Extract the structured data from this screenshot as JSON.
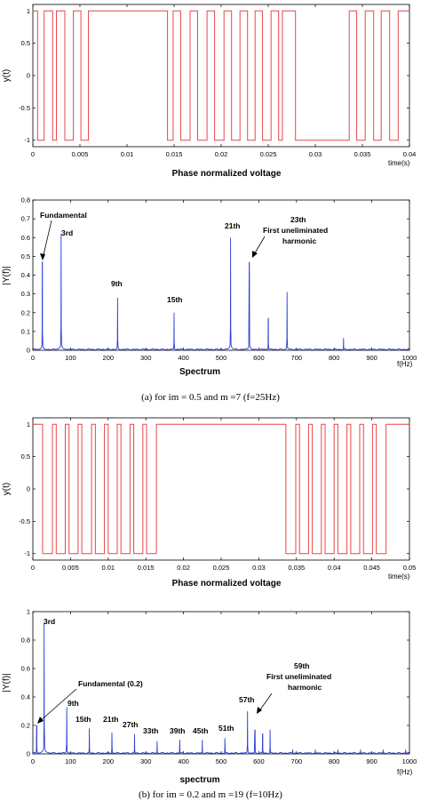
{
  "chart_data": [
    {
      "type": "line",
      "ylabel": "y(t)",
      "xlabel": "Phase normalized voltage",
      "xunit": "time(s)",
      "xlim": [
        0,
        0.04
      ],
      "ylim": [
        -1.1,
        1.1
      ],
      "xticks": [
        "0",
        "0.005",
        "0.01",
        "0.015",
        "0.02",
        "0.025",
        "0.03",
        "0.035",
        "0.04"
      ],
      "yticks": [
        "-1",
        "-0.5",
        "0",
        "0.5",
        "1"
      ],
      "color": "#e8474a",
      "pulses": [
        [
          0.0005,
          0.0012
        ],
        [
          0.0021,
          0.0025
        ],
        [
          0.0034,
          0.0043
        ],
        [
          0.0051,
          0.0059
        ],
        [
          0.0143,
          0.0149
        ],
        [
          0.0157,
          0.0167
        ],
        [
          0.0175,
          0.0185
        ],
        [
          0.0193,
          0.0203
        ],
        [
          0.0211,
          0.022
        ],
        [
          0.0228,
          0.0236
        ],
        [
          0.0244,
          0.0253
        ],
        [
          0.0261,
          0.0265
        ],
        [
          0.0279,
          0.0336
        ],
        [
          0.0344,
          0.0353
        ],
        [
          0.0362,
          0.037
        ],
        [
          0.0379,
          0.0388
        ]
      ]
    },
    {
      "type": "line",
      "ylabel": "|Y(f)|",
      "xlabel": "Spectrum",
      "xunit": "f(Hz)",
      "xlim": [
        0,
        1000
      ],
      "ylim": [
        0,
        0.8
      ],
      "xticks": [
        "0",
        "100",
        "200",
        "300",
        "400",
        "500",
        "600",
        "700",
        "800",
        "900",
        "1000"
      ],
      "yticks": [
        "0",
        "0.1",
        "0.2",
        "0.3",
        "0.4",
        "0.5",
        "0.6",
        "0.7",
        "0.8"
      ],
      "color": "#2b3fd6",
      "peaks": [
        {
          "f": 25,
          "a": 0.47
        },
        {
          "f": 75,
          "a": 0.62
        },
        {
          "f": 225,
          "a": 0.28
        },
        {
          "f": 375,
          "a": 0.2
        },
        {
          "f": 525,
          "a": 0.6
        },
        {
          "f": 575,
          "a": 0.47
        },
        {
          "f": 625,
          "a": 0.17
        },
        {
          "f": 675,
          "a": 0.31
        },
        {
          "f": 825,
          "a": 0.065
        }
      ],
      "annotations": [
        "Fundamental",
        "3rd",
        "9th",
        "15th",
        "21th",
        "23th",
        "First uneliminated",
        "harmonic"
      ]
    },
    {
      "type": "line",
      "ylabel": "y(t)",
      "xlabel": "Phase normalized voltage",
      "xunit": "time(s)",
      "xlim": [
        0,
        0.05
      ],
      "ylim": [
        -1.1,
        1.1
      ],
      "xticks": [
        "0",
        "0.005",
        "0.01",
        "0.015",
        "0.02",
        "0.025",
        "0.03",
        "0.035",
        "0.04",
        "0.045",
        "0.05"
      ],
      "yticks": [
        "-1",
        "-0.5",
        "0",
        "0.5",
        "1"
      ],
      "color": "#e8474a",
      "pulses": [
        [
          0.0013,
          0.0026
        ],
        [
          0.0031,
          0.0043
        ],
        [
          0.0048,
          0.006
        ],
        [
          0.0065,
          0.0078
        ],
        [
          0.0083,
          0.0095
        ],
        [
          0.01,
          0.0112
        ],
        [
          0.0117,
          0.0129
        ],
        [
          0.0134,
          0.0146
        ],
        [
          0.0151,
          0.0164
        ],
        [
          0.0336,
          0.0349
        ],
        [
          0.0354,
          0.0366
        ],
        [
          0.0371,
          0.0383
        ],
        [
          0.0388,
          0.04
        ],
        [
          0.0405,
          0.0417
        ],
        [
          0.0422,
          0.0434
        ],
        [
          0.0439,
          0.0451
        ],
        [
          0.0456,
          0.0469
        ]
      ]
    },
    {
      "type": "line",
      "ylabel": "|Y(f)|",
      "xlabel": "spectrum",
      "xunit": "f(Hz)",
      "xlim": [
        0,
        1000
      ],
      "ylim": [
        0,
        1
      ],
      "xticks": [
        "0",
        "100",
        "200",
        "300",
        "400",
        "500",
        "600",
        "700",
        "800",
        "900",
        "1000"
      ],
      "yticks": [
        "0",
        "0.2",
        "0.4",
        "0.6",
        "0.8",
        "1"
      ],
      "color": "#2b3fd6",
      "peaks": [
        {
          "f": 10,
          "a": 0.2
        },
        {
          "f": 30,
          "a": 0.92
        },
        {
          "f": 90,
          "a": 0.33
        },
        {
          "f": 150,
          "a": 0.18
        },
        {
          "f": 210,
          "a": 0.15
        },
        {
          "f": 270,
          "a": 0.14
        },
        {
          "f": 330,
          "a": 0.09
        },
        {
          "f": 390,
          "a": 0.1
        },
        {
          "f": 450,
          "a": 0.1
        },
        {
          "f": 510,
          "a": 0.11
        },
        {
          "f": 570,
          "a": 0.3
        },
        {
          "f": 590,
          "a": 0.17
        },
        {
          "f": 610,
          "a": 0.14
        },
        {
          "f": 630,
          "a": 0.17
        },
        {
          "f": 690,
          "a": 0.03
        },
        {
          "f": 750,
          "a": 0.03
        },
        {
          "f": 810,
          "a": 0.03
        },
        {
          "f": 870,
          "a": 0.03
        },
        {
          "f": 930,
          "a": 0.03
        },
        {
          "f": 990,
          "a": 0.03
        }
      ],
      "annotations": [
        "3rd",
        "Fundamental (0.2)",
        "9th",
        "15th",
        "21th",
        "27th",
        "33th",
        "39th",
        "45th",
        "51th",
        "57th",
        "59th",
        "First uneliminated",
        "harmonic"
      ]
    }
  ],
  "captions": {
    "a": "(a) for im = 0.5 and m =7 (f=25Hz)",
    "b": "(b) for im = 0.2 and m =19 (f=10Hz)"
  }
}
